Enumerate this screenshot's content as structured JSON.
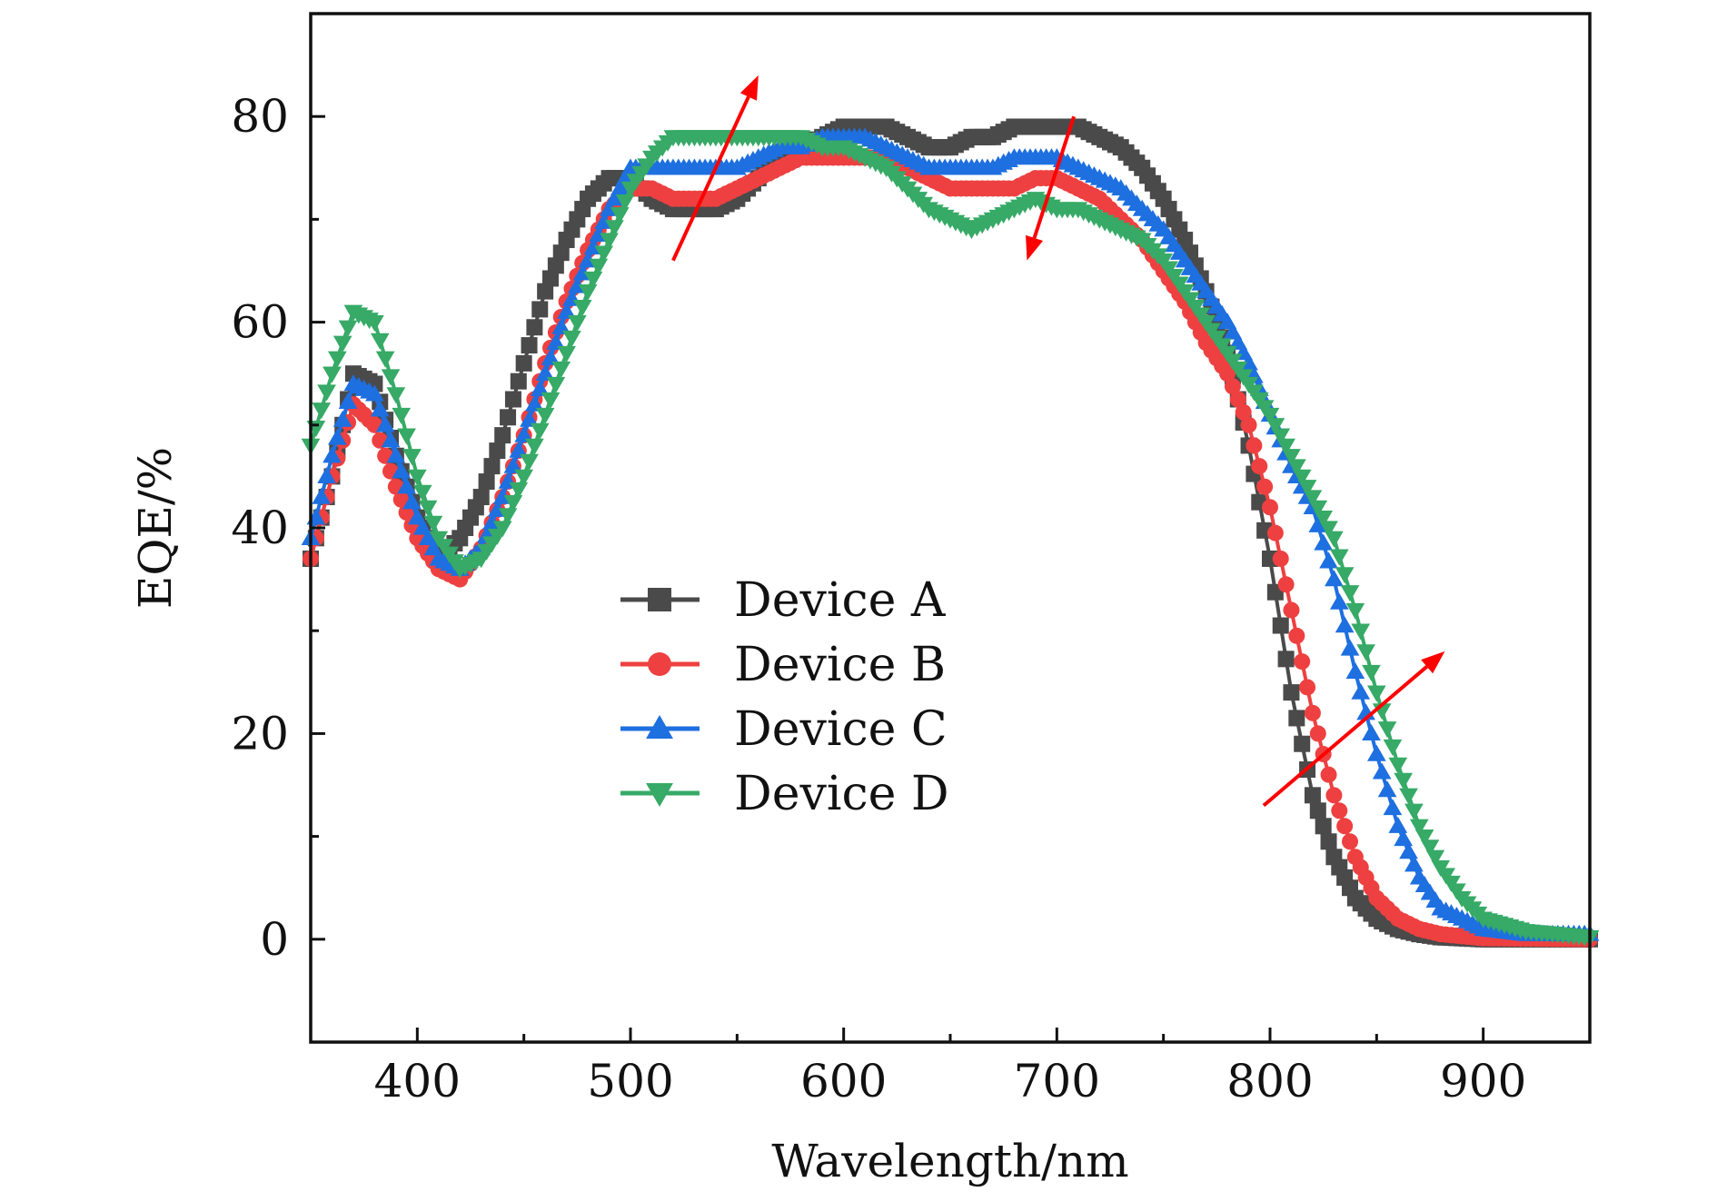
{
  "chart_data": {
    "type": "line",
    "title": "",
    "xlabel": "Wavelength/nm",
    "ylabel": "EQE/%",
    "xlim": [
      350,
      950
    ],
    "ylim": [
      -10,
      90
    ],
    "xticks": [
      400,
      500,
      600,
      700,
      800,
      900
    ],
    "yticks": [
      0,
      20,
      40,
      60,
      80
    ],
    "legend_position": "center-left",
    "series": [
      {
        "name": "Device A",
        "color": "#4a4a4a",
        "marker": "square",
        "points": [
          [
            350,
            37
          ],
          [
            360,
            45
          ],
          [
            370,
            55
          ],
          [
            380,
            54
          ],
          [
            390,
            47
          ],
          [
            400,
            41
          ],
          [
            410,
            37
          ],
          [
            420,
            39
          ],
          [
            430,
            43
          ],
          [
            440,
            49
          ],
          [
            450,
            56
          ],
          [
            460,
            63
          ],
          [
            470,
            68
          ],
          [
            480,
            72
          ],
          [
            490,
            74
          ],
          [
            500,
            74
          ],
          [
            510,
            72
          ],
          [
            520,
            71
          ],
          [
            530,
            71
          ],
          [
            540,
            71
          ],
          [
            550,
            72
          ],
          [
            560,
            74
          ],
          [
            570,
            76
          ],
          [
            580,
            77
          ],
          [
            590,
            78
          ],
          [
            600,
            79
          ],
          [
            610,
            79
          ],
          [
            620,
            79
          ],
          [
            630,
            78
          ],
          [
            640,
            77
          ],
          [
            650,
            77
          ],
          [
            660,
            78
          ],
          [
            670,
            78
          ],
          [
            680,
            79
          ],
          [
            690,
            79
          ],
          [
            700,
            79
          ],
          [
            710,
            79
          ],
          [
            720,
            78
          ],
          [
            730,
            77
          ],
          [
            740,
            75
          ],
          [
            750,
            72
          ],
          [
            760,
            68
          ],
          [
            770,
            63
          ],
          [
            780,
            57
          ],
          [
            790,
            48
          ],
          [
            800,
            37
          ],
          [
            810,
            24
          ],
          [
            820,
            14
          ],
          [
            830,
            8
          ],
          [
            840,
            4
          ],
          [
            850,
            2
          ],
          [
            860,
            1
          ],
          [
            870,
            0.5
          ],
          [
            880,
            0.2
          ],
          [
            900,
            0
          ],
          [
            950,
            0
          ]
        ]
      },
      {
        "name": "Device B",
        "color": "#ee4040",
        "marker": "circle",
        "points": [
          [
            350,
            37
          ],
          [
            360,
            45
          ],
          [
            370,
            52
          ],
          [
            380,
            50
          ],
          [
            390,
            44
          ],
          [
            400,
            39
          ],
          [
            410,
            36
          ],
          [
            420,
            35
          ],
          [
            430,
            38
          ],
          [
            440,
            43
          ],
          [
            450,
            49
          ],
          [
            460,
            56
          ],
          [
            470,
            62
          ],
          [
            480,
            67
          ],
          [
            490,
            71
          ],
          [
            500,
            73
          ],
          [
            510,
            73
          ],
          [
            520,
            72
          ],
          [
            530,
            72
          ],
          [
            540,
            72
          ],
          [
            550,
            73
          ],
          [
            560,
            74
          ],
          [
            570,
            75
          ],
          [
            580,
            76
          ],
          [
            590,
            76
          ],
          [
            600,
            76
          ],
          [
            610,
            76
          ],
          [
            620,
            76
          ],
          [
            630,
            75
          ],
          [
            640,
            74
          ],
          [
            650,
            73
          ],
          [
            660,
            73
          ],
          [
            670,
            73
          ],
          [
            680,
            73
          ],
          [
            690,
            74
          ],
          [
            700,
            74
          ],
          [
            710,
            73
          ],
          [
            720,
            72
          ],
          [
            730,
            70
          ],
          [
            740,
            68
          ],
          [
            750,
            65
          ],
          [
            760,
            62
          ],
          [
            770,
            58
          ],
          [
            780,
            55
          ],
          [
            790,
            50
          ],
          [
            800,
            42
          ],
          [
            810,
            32
          ],
          [
            820,
            22
          ],
          [
            830,
            14
          ],
          [
            840,
            8
          ],
          [
            850,
            4
          ],
          [
            860,
            2
          ],
          [
            870,
            1
          ],
          [
            880,
            0.5
          ],
          [
            900,
            0.1
          ],
          [
            950,
            0
          ]
        ]
      },
      {
        "name": "Device C",
        "color": "#1e6fe0",
        "marker": "triangle-up",
        "points": [
          [
            350,
            39
          ],
          [
            360,
            47
          ],
          [
            370,
            54
          ],
          [
            380,
            53
          ],
          [
            390,
            47
          ],
          [
            400,
            41
          ],
          [
            410,
            37
          ],
          [
            420,
            36
          ],
          [
            430,
            38
          ],
          [
            440,
            43
          ],
          [
            450,
            49
          ],
          [
            460,
            55
          ],
          [
            470,
            61
          ],
          [
            480,
            66
          ],
          [
            490,
            71
          ],
          [
            500,
            75
          ],
          [
            510,
            75
          ],
          [
            520,
            75
          ],
          [
            530,
            75
          ],
          [
            540,
            75
          ],
          [
            550,
            75
          ],
          [
            560,
            76
          ],
          [
            570,
            77
          ],
          [
            580,
            77
          ],
          [
            590,
            78
          ],
          [
            600,
            78
          ],
          [
            610,
            78
          ],
          [
            620,
            77
          ],
          [
            630,
            76
          ],
          [
            640,
            75
          ],
          [
            650,
            75
          ],
          [
            660,
            75
          ],
          [
            670,
            75
          ],
          [
            680,
            76
          ],
          [
            690,
            76
          ],
          [
            700,
            76
          ],
          [
            710,
            75
          ],
          [
            720,
            74
          ],
          [
            730,
            73
          ],
          [
            740,
            71
          ],
          [
            750,
            69
          ],
          [
            760,
            66
          ],
          [
            770,
            63
          ],
          [
            780,
            60
          ],
          [
            790,
            56
          ],
          [
            800,
            51
          ],
          [
            810,
            46
          ],
          [
            820,
            42
          ],
          [
            830,
            35
          ],
          [
            840,
            26
          ],
          [
            850,
            18
          ],
          [
            860,
            11
          ],
          [
            870,
            6
          ],
          [
            880,
            3
          ],
          [
            890,
            2
          ],
          [
            900,
            1
          ],
          [
            920,
            0.5
          ],
          [
            950,
            0.5
          ]
        ]
      },
      {
        "name": "Device D",
        "color": "#36aa66",
        "marker": "triangle-down",
        "points": [
          [
            350,
            48
          ],
          [
            360,
            55
          ],
          [
            370,
            61
          ],
          [
            380,
            60
          ],
          [
            390,
            53
          ],
          [
            400,
            45
          ],
          [
            410,
            39
          ],
          [
            420,
            36
          ],
          [
            430,
            37
          ],
          [
            440,
            40
          ],
          [
            450,
            45
          ],
          [
            460,
            51
          ],
          [
            470,
            57
          ],
          [
            480,
            63
          ],
          [
            490,
            68
          ],
          [
            500,
            73
          ],
          [
            510,
            76
          ],
          [
            520,
            78
          ],
          [
            530,
            78
          ],
          [
            540,
            78
          ],
          [
            550,
            78
          ],
          [
            560,
            78
          ],
          [
            570,
            78
          ],
          [
            580,
            78
          ],
          [
            590,
            77
          ],
          [
            600,
            77
          ],
          [
            610,
            76
          ],
          [
            620,
            75
          ],
          [
            630,
            73
          ],
          [
            640,
            71
          ],
          [
            650,
            70
          ],
          [
            660,
            69
          ],
          [
            670,
            70
          ],
          [
            680,
            71
          ],
          [
            690,
            72
          ],
          [
            700,
            71
          ],
          [
            710,
            71
          ],
          [
            720,
            70
          ],
          [
            730,
            69
          ],
          [
            740,
            68
          ],
          [
            750,
            66
          ],
          [
            760,
            63
          ],
          [
            770,
            60
          ],
          [
            780,
            57
          ],
          [
            790,
            54
          ],
          [
            800,
            51
          ],
          [
            810,
            47
          ],
          [
            820,
            43
          ],
          [
            830,
            39
          ],
          [
            840,
            32
          ],
          [
            850,
            24
          ],
          [
            860,
            17
          ],
          [
            870,
            11
          ],
          [
            880,
            7
          ],
          [
            890,
            4
          ],
          [
            900,
            2
          ],
          [
            920,
            0.8
          ],
          [
            950,
            0.2
          ]
        ]
      }
    ],
    "annotations": [
      {
        "type": "arrow",
        "color": "#ff0000",
        "from": [
          520,
          66
        ],
        "to": [
          560,
          84
        ]
      },
      {
        "type": "arrow",
        "color": "#ff0000",
        "from": [
          708,
          80
        ],
        "to": [
          686,
          66
        ]
      },
      {
        "type": "arrow",
        "color": "#ff0000",
        "from": [
          797,
          13
        ],
        "to": [
          882,
          28
        ]
      }
    ]
  }
}
